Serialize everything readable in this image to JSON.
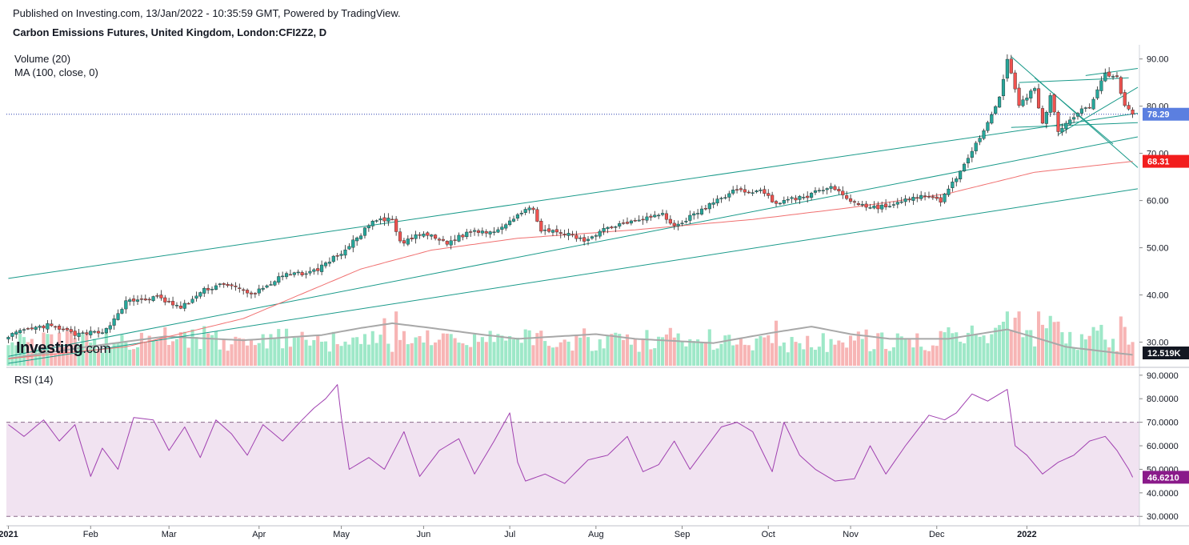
{
  "header": {
    "published": "Published on Investing.com, 13/Jan/2022 - 10:35:59 GMT, Powered by TradingView.",
    "title": "Carbon Emissions Futures, United Kingdom, London:CFI2Z2, D"
  },
  "indicators": {
    "volume": "Volume (20)",
    "ma": "MA (100, close, 0)",
    "rsi": "RSI (14)"
  },
  "watermark": {
    "brand": "Investing",
    "suffix": ".com"
  },
  "colors": {
    "up": "#26a69a",
    "down": "#ef5350",
    "vol_up": "#9ee8c8",
    "vol_down": "#f7b5b5",
    "trendline": "#1a9a8a",
    "ma": "#f07070",
    "vol_ma": "#a8a8a8",
    "rsi": "#a040b0",
    "rsi_band": "#f1e3f1",
    "last_badge": "#5b7fe0",
    "ma_badge": "#f21d1d",
    "rsi_badge": "#8a1a8a",
    "vol_badge": "#131722"
  },
  "chart_data": {
    "type": "candlestick",
    "price_axis": {
      "min": 25,
      "max": 93,
      "ticks": [
        "90.00",
        "80.00",
        "70.00",
        "60.00",
        "50.00",
        "40.00",
        "30.00"
      ]
    },
    "rsi_axis": {
      "min": 26,
      "max": 93,
      "ticks": [
        "90.0000",
        "80.0000",
        "70.0000",
        "60.0000",
        "50.0000",
        "40.0000",
        "30.0000"
      ],
      "band": [
        30,
        70
      ]
    },
    "x_labels": [
      {
        "label": "2021",
        "bar": 0,
        "bold": true
      },
      {
        "label": "Feb",
        "bar": 21
      },
      {
        "label": "Mar",
        "bar": 41
      },
      {
        "label": "Apr",
        "bar": 64
      },
      {
        "label": "May",
        "bar": 85
      },
      {
        "label": "Jun",
        "bar": 106
      },
      {
        "label": "Jul",
        "bar": 128
      },
      {
        "label": "Aug",
        "bar": 150
      },
      {
        "label": "Sep",
        "bar": 172
      },
      {
        "label": "Oct",
        "bar": 194
      },
      {
        "label": "Nov",
        "bar": 215
      },
      {
        "label": "Dec",
        "bar": 237
      },
      {
        "label": "2022",
        "bar": 260,
        "bold": true
      }
    ],
    "close_anchors": [
      [
        0,
        31.5
      ],
      [
        10,
        33.5
      ],
      [
        18,
        31.5
      ],
      [
        25,
        32.6
      ],
      [
        30,
        38.5
      ],
      [
        38,
        39.5
      ],
      [
        44,
        37.2
      ],
      [
        50,
        41
      ],
      [
        55,
        42.5
      ],
      [
        62,
        40
      ],
      [
        70,
        44
      ],
      [
        78,
        45
      ],
      [
        86,
        49.5
      ],
      [
        93,
        55.5
      ],
      [
        98,
        56
      ],
      [
        100,
        51
      ],
      [
        106,
        53
      ],
      [
        112,
        51
      ],
      [
        118,
        53.5
      ],
      [
        124,
        53.5
      ],
      [
        130,
        57
      ],
      [
        134,
        58.5
      ],
      [
        136,
        53.5
      ],
      [
        142,
        53
      ],
      [
        147,
        51.5
      ],
      [
        152,
        54
      ],
      [
        160,
        56
      ],
      [
        167,
        57
      ],
      [
        170,
        54.5
      ],
      [
        177,
        58
      ],
      [
        185,
        62
      ],
      [
        192,
        62
      ],
      [
        196,
        59.5
      ],
      [
        204,
        61
      ],
      [
        210,
        63
      ],
      [
        215,
        60
      ],
      [
        220,
        58.5
      ],
      [
        226,
        59
      ],
      [
        232,
        61
      ],
      [
        238,
        60
      ],
      [
        242,
        65
      ],
      [
        246,
        70
      ],
      [
        250,
        77
      ],
      [
        253,
        82
      ],
      [
        255,
        90
      ],
      [
        258,
        80
      ],
      [
        262,
        84
      ],
      [
        264,
        76
      ],
      [
        266,
        82
      ],
      [
        268,
        75
      ],
      [
        272,
        78
      ],
      [
        276,
        80
      ],
      [
        280,
        87
      ],
      [
        283,
        86
      ],
      [
        285,
        80
      ],
      [
        287,
        78.29
      ]
    ],
    "ma100_anchors": [
      [
        0,
        26.5
      ],
      [
        30,
        29
      ],
      [
        60,
        35
      ],
      [
        90,
        45.5
      ],
      [
        108,
        49.5
      ],
      [
        130,
        52
      ],
      [
        160,
        53.8
      ],
      [
        190,
        56
      ],
      [
        215,
        58.5
      ],
      [
        240,
        61.5
      ],
      [
        262,
        66
      ],
      [
        287,
        68.31
      ]
    ],
    "rsi_anchors": [
      [
        0,
        69
      ],
      [
        4,
        64
      ],
      [
        9,
        71
      ],
      [
        13,
        62
      ],
      [
        17,
        69
      ],
      [
        21,
        47
      ],
      [
        24,
        59
      ],
      [
        28,
        50
      ],
      [
        32,
        72
      ],
      [
        37,
        71
      ],
      [
        41,
        58
      ],
      [
        45,
        68
      ],
      [
        49,
        55
      ],
      [
        53,
        71
      ],
      [
        57,
        65
      ],
      [
        61,
        56
      ],
      [
        65,
        69
      ],
      [
        70,
        62
      ],
      [
        75,
        71
      ],
      [
        78,
        76
      ],
      [
        81,
        80
      ],
      [
        84,
        86
      ],
      [
        85,
        72
      ],
      [
        87,
        50
      ],
      [
        92,
        55
      ],
      [
        96,
        50
      ],
      [
        101,
        66
      ],
      [
        105,
        47
      ],
      [
        110,
        58
      ],
      [
        115,
        63
      ],
      [
        119,
        48
      ],
      [
        124,
        62
      ],
      [
        128,
        74
      ],
      [
        130,
        53
      ],
      [
        132,
        45
      ],
      [
        137,
        48
      ],
      [
        142,
        44
      ],
      [
        148,
        54
      ],
      [
        153,
        56
      ],
      [
        158,
        64
      ],
      [
        162,
        49
      ],
      [
        166,
        52
      ],
      [
        170,
        62
      ],
      [
        174,
        50
      ],
      [
        178,
        59
      ],
      [
        182,
        68
      ],
      [
        186,
        70
      ],
      [
        190,
        66
      ],
      [
        195,
        49
      ],
      [
        198,
        70
      ],
      [
        202,
        56
      ],
      [
        206,
        50
      ],
      [
        211,
        45
      ],
      [
        216,
        46
      ],
      [
        220,
        60
      ],
      [
        224,
        48
      ],
      [
        229,
        60
      ],
      [
        235,
        73
      ],
      [
        239,
        71
      ],
      [
        242,
        74
      ],
      [
        246,
        82
      ],
      [
        250,
        79
      ],
      [
        255,
        84
      ],
      [
        257,
        60
      ],
      [
        260,
        56
      ],
      [
        264,
        48
      ],
      [
        268,
        53
      ],
      [
        272,
        56
      ],
      [
        276,
        62
      ],
      [
        280,
        64
      ],
      [
        283,
        58
      ],
      [
        286,
        50
      ],
      [
        287,
        46.62
      ]
    ],
    "volume_ma_anchors": [
      [
        0,
        26.5
      ],
      [
        20,
        29
      ],
      [
        40,
        31.2
      ],
      [
        60,
        30.4
      ],
      [
        80,
        31.5
      ],
      [
        90,
        33
      ],
      [
        98,
        34
      ],
      [
        106,
        33.2
      ],
      [
        120,
        31.7
      ],
      [
        130,
        30.7
      ],
      [
        150,
        31.7
      ],
      [
        160,
        30.7
      ],
      [
        180,
        29.8
      ],
      [
        195,
        32
      ],
      [
        205,
        33.3
      ],
      [
        215,
        31.7
      ],
      [
        225,
        30.7
      ],
      [
        240,
        30.7
      ],
      [
        255,
        32.7
      ],
      [
        262,
        31
      ],
      [
        270,
        29
      ],
      [
        287,
        27.3
      ]
    ],
    "trendlines": [
      {
        "from": [
          0,
          43.5
        ],
        "to": [
          290,
          78.5
        ]
      },
      {
        "from": [
          0,
          27
        ],
        "to": [
          290,
          73.5
        ]
      },
      {
        "from": [
          0,
          25.5
        ],
        "to": [
          290,
          62.5
        ]
      },
      {
        "from": [
          256,
          90.5
        ],
        "to": [
          289,
          67
        ]
      },
      {
        "from": [
          256,
          75.5
        ],
        "to": [
          289,
          76.5
        ]
      },
      {
        "from": [
          258,
          85
        ],
        "to": [
          286,
          86
        ]
      },
      {
        "from": [
          275,
          86.5
        ],
        "to": [
          289,
          88
        ]
      },
      {
        "from": [
          262,
          86
        ],
        "to": [
          282,
          72
        ]
      },
      {
        "from": [
          268,
          74
        ],
        "to": [
          290,
          84
        ]
      }
    ],
    "last_value": "78.29",
    "ma_value": "68.31",
    "volume_value": "12.519K",
    "rsi_value": "46.6210"
  }
}
